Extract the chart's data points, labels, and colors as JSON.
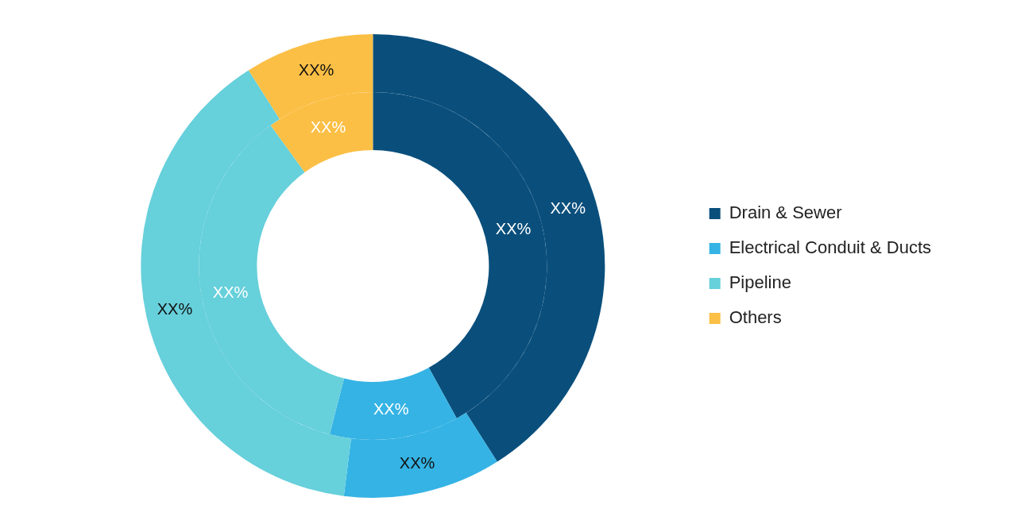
{
  "chart_data": {
    "type": "donut",
    "categories": [
      "Drain & Sewer",
      "Electrical Conduit & Ducts",
      "Pipeline",
      "Others"
    ],
    "colors": [
      "#0a4f7c",
      "#35b3e4",
      "#66d0db",
      "#fbbf45"
    ],
    "series": [
      {
        "values": [
          41,
          11,
          39,
          9
        ],
        "value_labels": [
          "XX%",
          "XX%",
          "XX%",
          "XX%"
        ]
      },
      {
        "values": [
          42,
          12,
          36,
          10
        ],
        "value_labels": [
          "XX%",
          "XX%",
          "XX%",
          "XX%"
        ]
      }
    ],
    "legend": "right"
  }
}
